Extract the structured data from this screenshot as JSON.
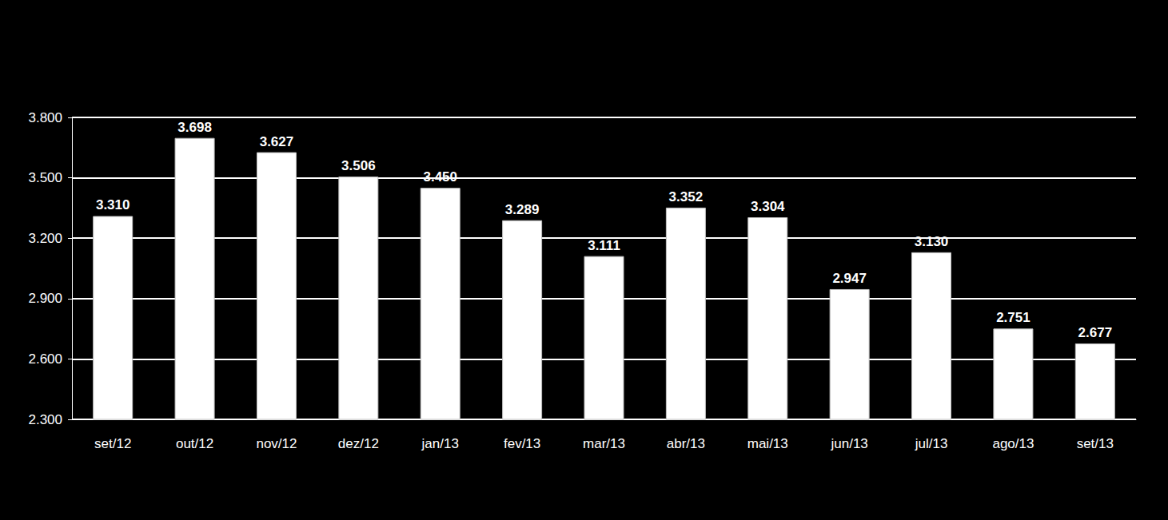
{
  "chart_data": {
    "type": "bar",
    "categories": [
      "set/12",
      "out/12",
      "nov/12",
      "dez/12",
      "jan/13",
      "fev/13",
      "mar/13",
      "abr/13",
      "mai/13",
      "jun/13",
      "jul/13",
      "ago/13",
      "set/13"
    ],
    "values": [
      3310,
      3698,
      3627,
      3506,
      3450,
      3289,
      3111,
      3352,
      3304,
      2947,
      3130,
      2751,
      2677
    ],
    "value_labels": [
      "3.310",
      "3.698",
      "3.627",
      "3.506",
      "3.450",
      "3.289",
      "3.111",
      "3.352",
      "3.304",
      "2.947",
      "3.130",
      "2.751",
      "2.677"
    ],
    "color": "#ffffff",
    "ylim": [
      2300,
      3800
    ],
    "yticks": [
      {
        "value": 2300,
        "label": "2.300"
      },
      {
        "value": 2600,
        "label": "2.600"
      },
      {
        "value": 2900,
        "label": "2.900"
      },
      {
        "value": 3200,
        "label": "3.200"
      },
      {
        "value": 3500,
        "label": "3.500"
      },
      {
        "value": 3800,
        "label": "3.800"
      }
    ],
    "grid": true,
    "data_labels": true
  }
}
